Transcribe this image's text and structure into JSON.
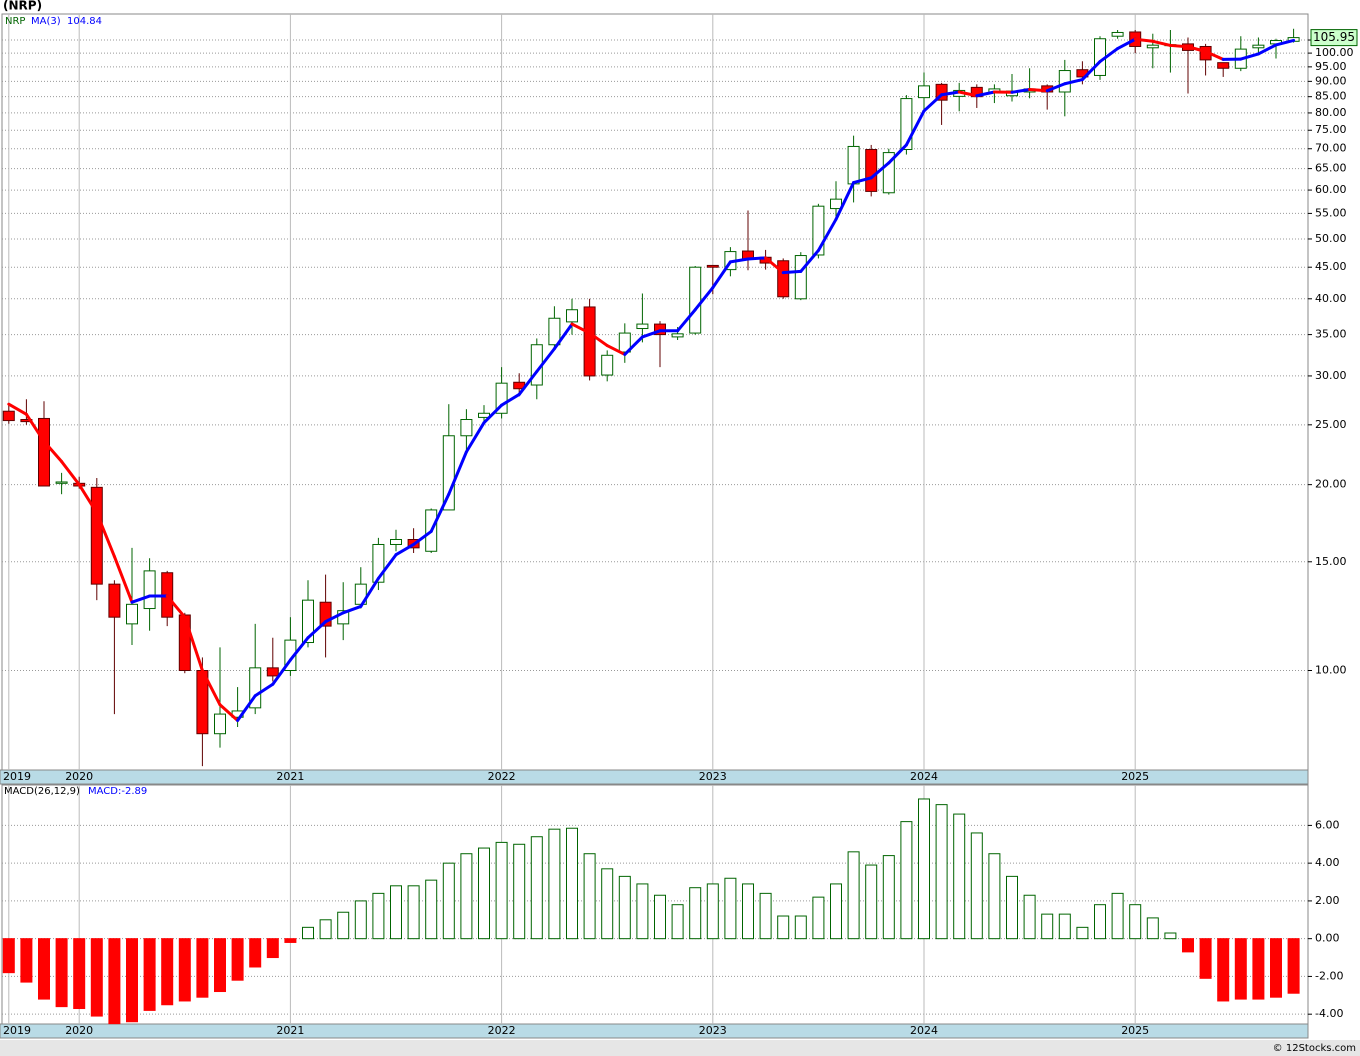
{
  "chart_data": [
    {
      "type": "candlestick",
      "title": "(NRP)",
      "categories": [
        "2019",
        null,
        null,
        null,
        "2020",
        null,
        null,
        null,
        null,
        null,
        null,
        null,
        null,
        null,
        null,
        null,
        "2021",
        null,
        null,
        null,
        null,
        null,
        null,
        null,
        null,
        null,
        null,
        null,
        "2022",
        null,
        null,
        null,
        null,
        null,
        null,
        null,
        null,
        null,
        null,
        null,
        "2023",
        null,
        null,
        null,
        null,
        null,
        null,
        null,
        null,
        null,
        null,
        null,
        "2024",
        null,
        null,
        null,
        null,
        null,
        null,
        null,
        null,
        null,
        null,
        null,
        "2025",
        null,
        null,
        null,
        null,
        null,
        null,
        null,
        null,
        null
      ],
      "series": [
        {
          "name": "NRP",
          "up_color": "#006400",
          "down_color": "#ff0000",
          "open": [
            26.3,
            25.5,
            25.6,
            20.1,
            20.1,
            19.8,
            13.8,
            11.9,
            12.6,
            14.4,
            12.3,
            10.0,
            7.9,
            8.4,
            8.7,
            10.1,
            10.0,
            11.1,
            12.9,
            11.9,
            12.8,
            13.9,
            16.0,
            16.3,
            15.6,
            18.2,
            24.0,
            25.7,
            26.1,
            29.3,
            29.0,
            33.7,
            36.7,
            38.8,
            30.1,
            32.8,
            35.8,
            36.4,
            34.7,
            35.2,
            45.3,
            44.6,
            47.8,
            46.7,
            46.1,
            40.0,
            47.1,
            56.0,
            61.4,
            69.8,
            59.4,
            69.8,
            84.7,
            89.0,
            85.1,
            88.0,
            86.5,
            85.3,
            86.5,
            88.5,
            86.5,
            94.0,
            92.0,
            106.5,
            108.2,
            102.0,
            103.0,
            103.5,
            102.5,
            96.5,
            94.5,
            102.0,
            103.5,
            104.5
          ],
          "high": [
            27.0,
            27.5,
            27.3,
            20.9,
            20.6,
            20.5,
            14.0,
            15.8,
            15.2,
            14.5,
            12.4,
            10.5,
            10.9,
            9.4,
            11.9,
            11.3,
            12.2,
            14.0,
            14.3,
            13.9,
            14.7,
            16.4,
            16.9,
            17.0,
            18.3,
            27.0,
            26.5,
            26.9,
            31.0,
            30.3,
            34.5,
            38.9,
            40.0,
            40.0,
            33.0,
            36.5,
            40.8,
            36.8,
            36.0,
            45.2,
            45.3,
            48.5,
            55.6,
            48.0,
            46.5,
            47.6,
            57.0,
            62.0,
            73.5,
            71.0,
            70.0,
            85.5,
            93.0,
            89.5,
            89.5,
            89.0,
            89.0,
            92.5,
            94.5,
            89.0,
            97.5,
            97.0,
            106.5,
            109.0,
            109.0,
            107.5,
            109.0,
            106.0,
            103.5,
            96.5,
            106.5,
            106.0,
            105.5,
            109.5
          ],
          "low": [
            25.1,
            25.0,
            19.9,
            19.3,
            19.7,
            13.0,
            8.5,
            11.0,
            11.6,
            11.8,
            9.9,
            7.0,
            7.5,
            8.1,
            8.5,
            9.6,
            9.8,
            10.9,
            10.5,
            11.2,
            12.6,
            13.5,
            15.6,
            15.5,
            15.5,
            18.2,
            22.5,
            25.0,
            25.6,
            27.8,
            27.5,
            33.0,
            35.0,
            29.5,
            29.4,
            31.5,
            34.0,
            31.0,
            34.3,
            35.0,
            40.7,
            43.5,
            44.5,
            44.6,
            40.0,
            39.8,
            46.5,
            54.0,
            57.3,
            58.6,
            59.0,
            68.5,
            80.0,
            76.5,
            80.5,
            81.5,
            83.0,
            83.5,
            84.5,
            81.0,
            79.0,
            89.0,
            90.5,
            105.5,
            100.0,
            94.5,
            93.0,
            86.0,
            92.0,
            91.5,
            93.5,
            99.5,
            98.0,
            104.0
          ],
          "close": [
            25.4,
            25.3,
            19.9,
            20.2,
            19.9,
            13.8,
            12.2,
            12.8,
            14.5,
            12.2,
            10.0,
            7.9,
            8.5,
            8.6,
            10.1,
            9.8,
            11.2,
            13.0,
            11.8,
            12.5,
            13.8,
            16.0,
            16.3,
            15.8,
            18.2,
            24.0,
            25.5,
            26.1,
            29.2,
            28.6,
            33.7,
            37.2,
            38.4,
            30.0,
            32.4,
            35.2,
            36.4,
            35.0,
            35.1,
            45.0,
            45.0,
            47.7,
            46.4,
            45.7,
            40.3,
            47.0,
            56.5,
            58.0,
            70.6,
            59.7,
            69.0,
            84.4,
            88.5,
            83.9,
            87.0,
            85.0,
            87.5,
            86.8,
            87.5,
            86.5,
            93.7,
            91.5,
            105.5,
            108.0,
            102.5,
            103.0,
            103.2,
            101.0,
            97.5,
            94.5,
            101.5,
            103.0,
            104.8,
            105.95
          ]
        },
        {
          "name": "MA(3)",
          "color": "#0000ff",
          "down_color": "#ff0000",
          "values": [
            27.0,
            26.0,
            23.5,
            21.8,
            20.0,
            18.0,
            15.3,
            12.9,
            13.2,
            13.2,
            12.2,
            10.0,
            8.8,
            8.3,
            9.1,
            9.5,
            10.4,
            11.3,
            12.0,
            12.4,
            12.7,
            14.1,
            15.4,
            16.0,
            16.8,
            19.3,
            22.6,
            25.2,
            26.9,
            28.0,
            30.5,
            33.2,
            36.4,
            35.2,
            33.6,
            32.5,
            34.7,
            35.5,
            35.5,
            38.4,
            41.7,
            45.9,
            46.4,
            46.6,
            44.1,
            44.3,
            47.9,
            53.8,
            61.7,
            62.8,
            66.4,
            71.0,
            80.6,
            85.6,
            86.5,
            85.3,
            86.5,
            86.4,
            87.3,
            86.9,
            89.2,
            90.6,
            96.9,
            101.7,
            105.3,
            104.5,
            102.9,
            102.4,
            100.6,
            97.7,
            97.8,
            99.7,
            103.1,
            104.84
          ]
        }
      ],
      "ylim": [
        6.9,
        115.7
      ],
      "log_scale": true,
      "grid": true,
      "yticks": [
        {
          "value": 10,
          "label": "10.00"
        },
        {
          "value": 15,
          "label": "15.00"
        },
        {
          "value": 20,
          "label": "20.00"
        },
        {
          "value": 25,
          "label": "25.00"
        },
        {
          "value": 30,
          "label": "30.00"
        },
        {
          "value": 35,
          "label": "35.00"
        },
        {
          "value": 40,
          "label": "40.00"
        },
        {
          "value": 45,
          "label": "45.00"
        },
        {
          "value": 50,
          "label": "50.00"
        },
        {
          "value": 55,
          "label": "55.00"
        },
        {
          "value": 60,
          "label": "60.00"
        },
        {
          "value": 65,
          "label": "65.00"
        },
        {
          "value": 70,
          "label": "70.00"
        },
        {
          "value": 75,
          "label": "75.00"
        },
        {
          "value": 80,
          "label": "80.00"
        },
        {
          "value": 85,
          "label": "85.00"
        },
        {
          "value": 90,
          "label": "90.00"
        },
        {
          "value": 95,
          "label": "95.00"
        },
        {
          "value": 100,
          "label": "100.00"
        },
        {
          "value": 105,
          "label": "105.00"
        }
      ]
    },
    {
      "type": "bar",
      "title": "MACD(26,12,9)",
      "subtitle": "MACD:-2.89",
      "categories": [
        "2019",
        null,
        null,
        null,
        "2020",
        null,
        null,
        null,
        null,
        null,
        null,
        null,
        null,
        null,
        null,
        null,
        "2021",
        null,
        null,
        null,
        null,
        null,
        null,
        null,
        null,
        null,
        null,
        null,
        "2022",
        null,
        null,
        null,
        null,
        null,
        null,
        null,
        null,
        null,
        null,
        null,
        "2023",
        null,
        null,
        null,
        null,
        null,
        null,
        null,
        null,
        null,
        null,
        null,
        "2024",
        null,
        null,
        null,
        null,
        null,
        null,
        null,
        null,
        null,
        null,
        null,
        "2025",
        null,
        null,
        null,
        null,
        null,
        null,
        null,
        null,
        null
      ],
      "values": [
        -1.8,
        -2.3,
        -3.2,
        -3.6,
        -3.7,
        -4.1,
        -4.5,
        -4.4,
        -3.8,
        -3.5,
        -3.3,
        -3.1,
        -2.8,
        -2.2,
        -1.5,
        -1.0,
        -0.2,
        0.6,
        1.0,
        1.4,
        2.0,
        2.4,
        2.8,
        2.8,
        3.1,
        4.0,
        4.5,
        4.8,
        5.1,
        5.0,
        5.4,
        5.8,
        5.85,
        4.5,
        3.7,
        3.3,
        2.9,
        2.3,
        1.8,
        2.7,
        2.9,
        3.2,
        2.9,
        2.4,
        1.2,
        1.2,
        2.2,
        2.9,
        4.6,
        3.9,
        4.4,
        6.2,
        7.4,
        7.1,
        6.6,
        5.6,
        4.5,
        3.3,
        2.3,
        1.3,
        1.3,
        0.6,
        1.8,
        2.4,
        1.8,
        1.1,
        0.3,
        -0.7,
        -2.1,
        -3.3,
        -3.2,
        -3.2,
        -3.1,
        -2.89
      ],
      "up_color": "#006400",
      "down_color": "#ff0000",
      "ylim": [
        -4.52,
        8.14
      ],
      "grid": true,
      "yticks": [
        {
          "value": -4,
          "label": "-4.00"
        },
        {
          "value": -2,
          "label": "-2.00"
        },
        {
          "value": 0,
          "label": "0.00"
        },
        {
          "value": 2,
          "label": "2.00"
        },
        {
          "value": 4,
          "label": "4.00"
        },
        {
          "value": 6,
          "label": "6.00"
        }
      ]
    }
  ],
  "footer": "© 12Stocks.com"
}
